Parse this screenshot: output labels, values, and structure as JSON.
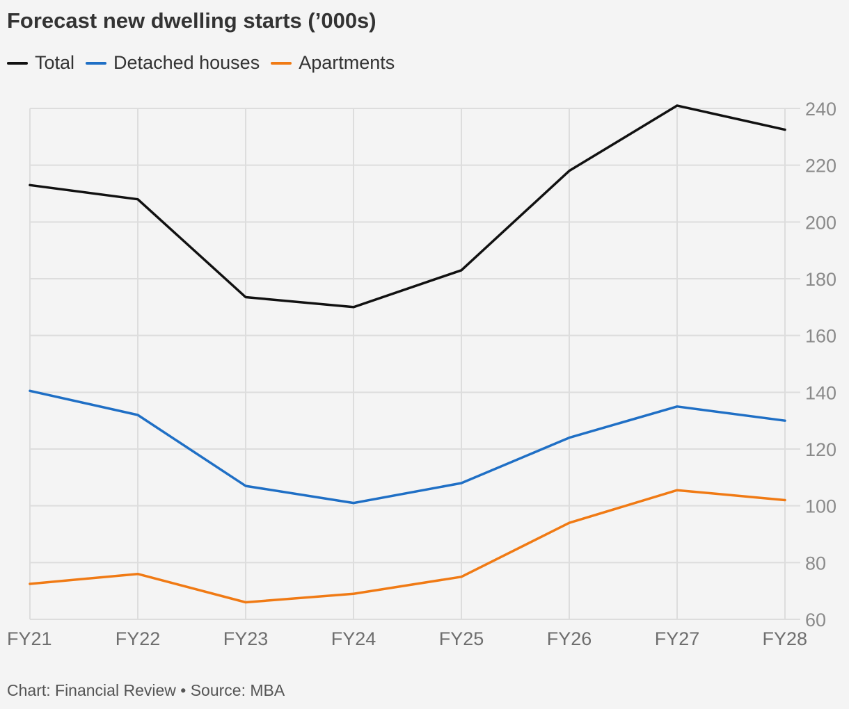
{
  "chart_data": {
    "type": "line",
    "title": "Forecast new dwelling starts (’000s)",
    "categories": [
      "FY21",
      "FY22",
      "FY23",
      "FY24",
      "FY25",
      "FY26",
      "FY27",
      "FY28"
    ],
    "series": [
      {
        "name": "Total",
        "color": "#111111",
        "values": [
          213,
          208,
          173.5,
          170,
          183,
          218,
          241,
          232.5
        ]
      },
      {
        "name": "Detached houses",
        "color": "#1f6fc5",
        "values": [
          140.5,
          132,
          107,
          101,
          108,
          124,
          135,
          130
        ]
      },
      {
        "name": "Apartments",
        "color": "#f07a14",
        "values": [
          72.5,
          76,
          66,
          69,
          75,
          94,
          105.5,
          102
        ]
      }
    ],
    "ylim": [
      60,
      240
    ],
    "yticks": [
      60,
      80,
      100,
      120,
      140,
      160,
      180,
      200,
      220,
      240
    ],
    "ytick_labels": [
      "60",
      "80",
      "100",
      "120",
      "140",
      "160",
      "180",
      "200",
      "220",
      "240"
    ],
    "y_axis_side": "right",
    "grid": true,
    "legend_position": "top-left",
    "xlabel": "",
    "ylabel": ""
  },
  "footer": {
    "text": "Chart: Financial Review • Source: MBA"
  },
  "colors": {
    "background": "#f4f4f4",
    "grid": "#dddddd",
    "axis_text": "#8a8a8a"
  }
}
